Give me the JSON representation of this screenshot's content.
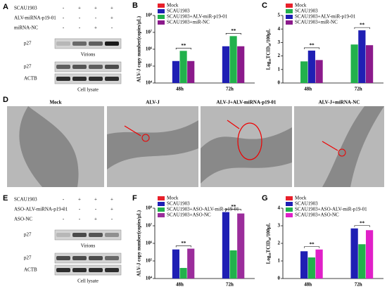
{
  "blots": [
    {
      "label": "A",
      "rows": [
        {
          "name": "SCAU1903",
          "signs": [
            "-",
            "+",
            "+",
            "+"
          ]
        },
        {
          "name": "ALV-miRNA-p19-01",
          "signs": [
            "-",
            "-",
            "-",
            "+"
          ]
        },
        {
          "name": "miRNA-NC",
          "signs": [
            "-",
            "-",
            "+",
            "-"
          ]
        }
      ],
      "bands": [
        "p27",
        "p27",
        "ACTB"
      ],
      "groups": [
        "Virions",
        "Cell lysate"
      ]
    },
    {
      "label": "E",
      "rows": [
        {
          "name": "SCAU1903",
          "signs": [
            "-",
            "+",
            "+",
            "+"
          ]
        },
        {
          "name": "ASO-ALV-miRNA-p19-01",
          "signs": [
            "-",
            "-",
            "-",
            "+"
          ]
        },
        {
          "name": "ASO-NC",
          "signs": [
            "-",
            "-",
            "+",
            "-"
          ]
        }
      ],
      "bands": [
        "p27",
        "p27",
        "ACTB"
      ],
      "groups": [
        "Virions",
        "Cell lysate"
      ]
    }
  ],
  "micrographs": {
    "label": "D",
    "titles": [
      "Mock",
      "ALV-J",
      "ALV-J+ALV-miRNA-p19-01",
      "ALV-J+miRNA-NC"
    ]
  },
  "chart_data": [
    {
      "label": "B",
      "type": "bar",
      "log": true,
      "y_label": "ALV-J copy number(copies/μL)",
      "categories": [
        "48h",
        "72h"
      ],
      "series": [
        {
          "name": "Mock",
          "color": "#e8202a",
          "values": [
            null,
            null
          ]
        },
        {
          "name": "SCAU1903",
          "color": "#1f1fb4",
          "values": [
            200000,
            1500000
          ]
        },
        {
          "name": "SCAU1903+ALV-miR-p19-01",
          "color": "#22b14c",
          "values": [
            800000,
            6000000
          ]
        },
        {
          "name": "SCAU1903+miR-NC",
          "color": "#8b1a8b",
          "values": [
            200000,
            1500000
          ]
        }
      ],
      "ylim": [
        10000,
        100000000
      ],
      "yticks": [
        {
          "value": 10000,
          "label": "10⁴"
        },
        {
          "value": 100000,
          "label": "10⁵"
        },
        {
          "value": 1000000,
          "label": "10⁶"
        },
        {
          "value": 10000000,
          "label": "10⁷"
        },
        {
          "value": 100000000,
          "label": "10⁸"
        }
      ],
      "annotations": [
        "**",
        "**"
      ]
    },
    {
      "label": "C",
      "type": "bar",
      "log": false,
      "y_label": "Log₁₀TCID₅₀/100μL",
      "categories": [
        "48h",
        "72h"
      ],
      "series": [
        {
          "name": "Mock",
          "color": "#e8202a",
          "values": [
            null,
            null
          ]
        },
        {
          "name": "SCAU1903",
          "color": "#22b14c",
          "values": [
            1.6,
            2.85
          ]
        },
        {
          "name": "SCAU1903+ALV-miR-p19-01",
          "color": "#1f1fb4",
          "values": [
            2.4,
            3.9
          ]
        },
        {
          "name": "SCAU1903+miR-NC",
          "color": "#8b1a8b",
          "values": [
            1.7,
            2.8
          ]
        }
      ],
      "ylim": [
        0,
        5
      ],
      "yticks": [
        0,
        1,
        2,
        3,
        4,
        5
      ],
      "annotations": [
        "**",
        "**"
      ]
    },
    {
      "label": "F",
      "type": "bar",
      "log": true,
      "y_label": "ALV-J copy number(copies/μL)",
      "categories": [
        "48h",
        "72h"
      ],
      "series": [
        {
          "name": "Mock",
          "color": "#e8202a",
          "values": [
            null,
            null
          ]
        },
        {
          "name": "SCAU1903",
          "color": "#1f1fb4",
          "values": [
            450000,
            60000000
          ]
        },
        {
          "name": "SCAU1903+ASO-ALV-miR-p19-01",
          "color": "#22b14c",
          "values": [
            40000,
            400000
          ]
        },
        {
          "name": "SCAU1903+ASO-NC",
          "color": "#9b2d9b",
          "values": [
            500000,
            50000000
          ]
        }
      ],
      "ylim": [
        10000,
        100000000
      ],
      "yticks": [
        {
          "value": 10000,
          "label": "10⁴"
        },
        {
          "value": 100000,
          "label": "10⁵"
        },
        {
          "value": 1000000,
          "label": "10⁶"
        },
        {
          "value": 10000000,
          "label": "10⁷"
        },
        {
          "value": 100000000,
          "label": "10⁸"
        }
      ],
      "annotations": [
        "**",
        "**"
      ]
    },
    {
      "label": "G",
      "type": "bar",
      "log": false,
      "y_label": "Log₁₀TCID₅₀/100μL",
      "categories": [
        "48h",
        "72h"
      ],
      "series": [
        {
          "name": "Mock",
          "color": "#e8202a",
          "values": [
            null,
            null
          ]
        },
        {
          "name": "SCAU1903",
          "color": "#1f1fb4",
          "values": [
            1.55,
            2.85
          ]
        },
        {
          "name": "SCAU1903+ASO-ALV-miR-p19-01",
          "color": "#22b14c",
          "values": [
            1.2,
            1.95
          ]
        },
        {
          "name": "SCAU1903+ASO-NC",
          "color": "#e020c8",
          "values": [
            1.65,
            2.75
          ]
        }
      ],
      "ylim": [
        0,
        4
      ],
      "yticks": [
        0,
        1,
        2,
        3,
        4
      ],
      "annotations": [
        "**",
        "**"
      ]
    }
  ]
}
